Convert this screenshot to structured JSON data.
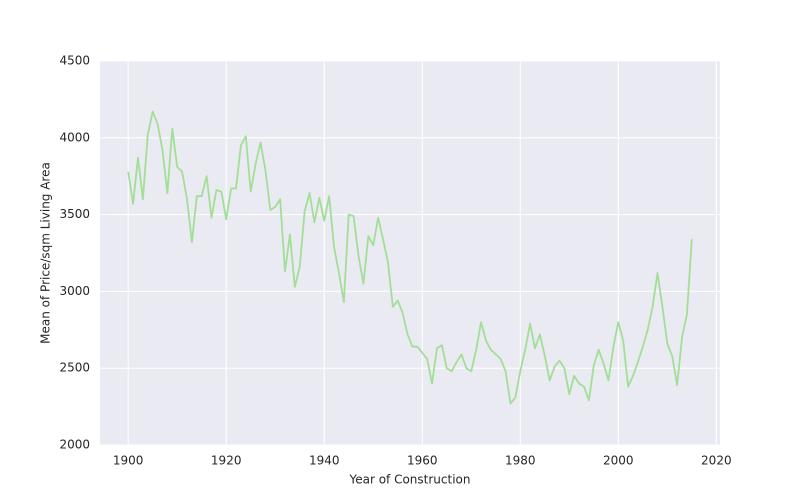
{
  "chart_data": {
    "type": "line",
    "xlabel": "Year of Construction",
    "ylabel": "Mean of Price/sqm Living Area",
    "x": [
      1900,
      1901,
      1902,
      1903,
      1904,
      1905,
      1906,
      1907,
      1908,
      1909,
      1910,
      1911,
      1912,
      1913,
      1914,
      1915,
      1916,
      1917,
      1918,
      1919,
      1920,
      1921,
      1922,
      1923,
      1924,
      1925,
      1926,
      1927,
      1928,
      1929,
      1930,
      1931,
      1932,
      1933,
      1934,
      1935,
      1936,
      1937,
      1938,
      1939,
      1940,
      1941,
      1942,
      1943,
      1944,
      1945,
      1946,
      1947,
      1948,
      1949,
      1950,
      1951,
      1952,
      1953,
      1954,
      1955,
      1956,
      1957,
      1958,
      1959,
      1960,
      1961,
      1962,
      1963,
      1964,
      1965,
      1966,
      1967,
      1968,
      1969,
      1970,
      1971,
      1972,
      1973,
      1974,
      1975,
      1976,
      1977,
      1978,
      1979,
      1980,
      1981,
      1982,
      1983,
      1984,
      1985,
      1986,
      1987,
      1988,
      1989,
      1990,
      1991,
      1992,
      1993,
      1994,
      1995,
      1996,
      1997,
      1998,
      1999,
      2000,
      2001,
      2002,
      2003,
      2004,
      2005,
      2006,
      2007,
      2008,
      2009,
      2010,
      2011,
      2012,
      2013,
      2014,
      2015
    ],
    "series": [
      {
        "color": "#a3de97",
        "values": [
          3780,
          3570,
          3870,
          3600,
          4020,
          4170,
          4090,
          3920,
          3640,
          4060,
          3810,
          3780,
          3600,
          3320,
          3620,
          3620,
          3750,
          3480,
          3660,
          3650,
          3470,
          3670,
          3670,
          3950,
          4010,
          3650,
          3830,
          3970,
          3790,
          3530,
          3550,
          3600,
          3130,
          3370,
          3030,
          3160,
          3520,
          3640,
          3450,
          3610,
          3460,
          3620,
          3290,
          3120,
          2930,
          3500,
          3490,
          3230,
          3050,
          3360,
          3300,
          3480,
          3340,
          3190,
          2900,
          2940,
          2860,
          2720,
          2640,
          2640,
          2600,
          2560,
          2400,
          2630,
          2650,
          2500,
          2480,
          2540,
          2590,
          2500,
          2480,
          2620,
          2800,
          2680,
          2620,
          2590,
          2560,
          2480,
          2270,
          2310,
          2480,
          2620,
          2790,
          2630,
          2720,
          2580,
          2420,
          2510,
          2550,
          2500,
          2330,
          2450,
          2400,
          2380,
          2290,
          2520,
          2620,
          2530,
          2420,
          2640,
          2800,
          2680,
          2380,
          2450,
          2540,
          2640,
          2750,
          2900,
          3120,
          2900,
          2660,
          2580,
          2390,
          2700,
          2850,
          3340
        ]
      }
    ],
    "xlim": [
      1894.25,
      2020.75
    ],
    "xticks": [
      1900,
      1920,
      1940,
      1960,
      1980,
      2000,
      2020
    ],
    "ylim": [
      2000,
      4500
    ],
    "yticks": [
      2000,
      2500,
      3000,
      3500,
      4000,
      4500
    ],
    "grid": true
  }
}
